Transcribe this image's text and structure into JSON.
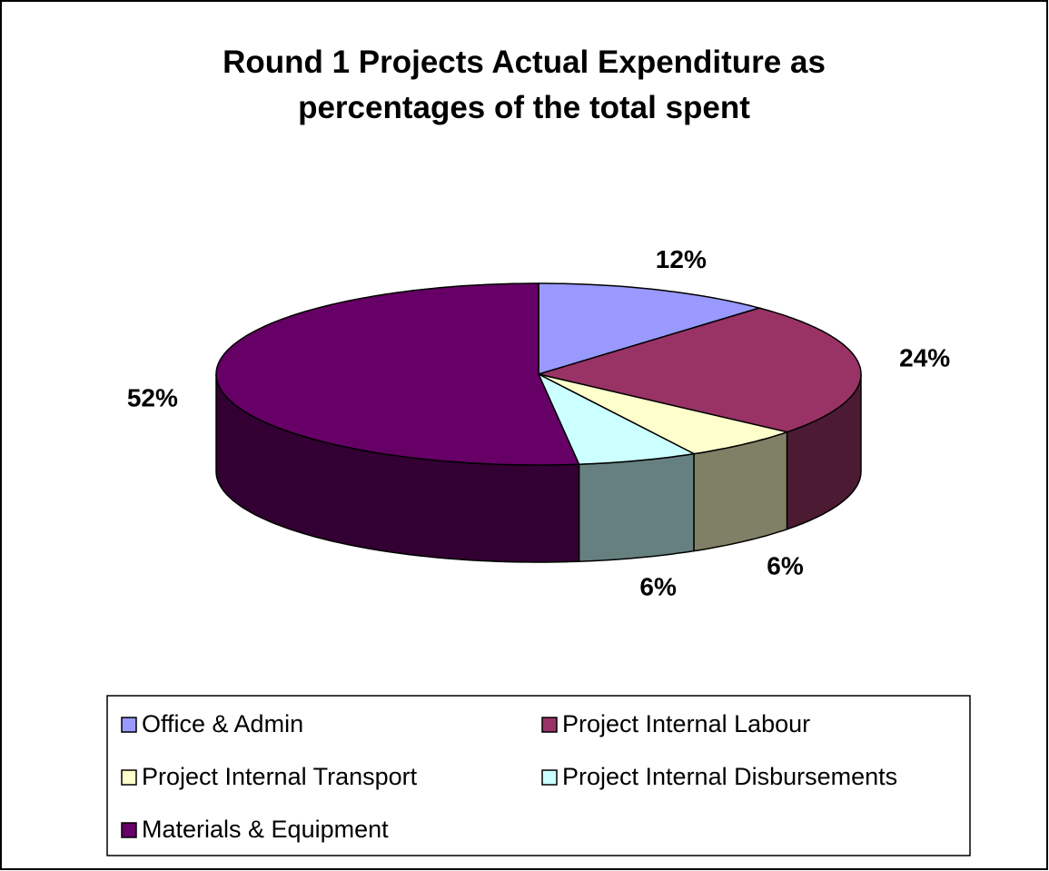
{
  "chart_data": {
    "type": "pie",
    "title": "Round 1 Projects Actual Expenditure as percentages of the total spent",
    "categories": [
      "Office & Admin",
      "Project Internal Labour",
      "Project Internal Transport",
      "Project Internal Disbursements",
      "Materials & Equipment"
    ],
    "values": [
      12,
      24,
      6,
      6,
      52
    ],
    "value_labels": [
      "12%",
      "24%",
      "6%",
      "6%",
      "52%"
    ],
    "colors": [
      "#9999ff",
      "#993366",
      "#ffffcc",
      "#ccffff",
      "#660066"
    ],
    "legend": "bottom"
  }
}
